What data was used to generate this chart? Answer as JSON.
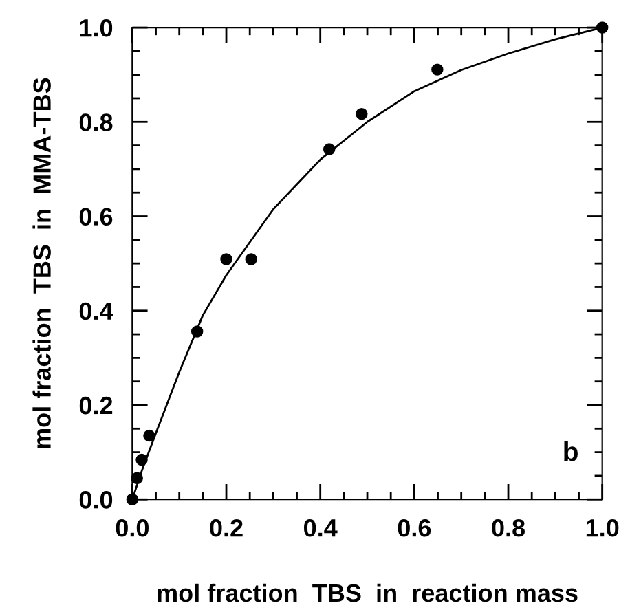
{
  "chart_data": {
    "type": "scatter",
    "xlabel": "mol fraction  TBS  in  reaction mass",
    "ylabel": "mol fraction  TBS  in  MMA-TBS",
    "annotations": [
      "b"
    ],
    "xlim": [
      0,
      1
    ],
    "ylim": [
      0,
      1
    ],
    "xticks": [
      {
        "value": 0,
        "label": "0.0"
      },
      {
        "value": 0.05,
        "label": null
      },
      {
        "value": 0.1,
        "label": null
      },
      {
        "value": 0.15,
        "label": null
      },
      {
        "value": 0.2,
        "label": "0.2"
      },
      {
        "value": 0.25,
        "label": null
      },
      {
        "value": 0.3,
        "label": null
      },
      {
        "value": 0.35,
        "label": null
      },
      {
        "value": 0.4,
        "label": "0.4"
      },
      {
        "value": 0.45,
        "label": null
      },
      {
        "value": 0.5,
        "label": null
      },
      {
        "value": 0.55,
        "label": null
      },
      {
        "value": 0.6,
        "label": "0.6"
      },
      {
        "value": 0.65,
        "label": null
      },
      {
        "value": 0.7,
        "label": null
      },
      {
        "value": 0.75,
        "label": null
      },
      {
        "value": 0.8,
        "label": "0.8"
      },
      {
        "value": 0.85,
        "label": null
      },
      {
        "value": 0.9,
        "label": null
      },
      {
        "value": 0.95,
        "label": null
      },
      {
        "value": 1,
        "label": "1.0"
      }
    ],
    "yticks": [
      {
        "value": 0,
        "label": "0.0"
      },
      {
        "value": 0.05,
        "label": null
      },
      {
        "value": 0.1,
        "label": null
      },
      {
        "value": 0.15,
        "label": null
      },
      {
        "value": 0.2,
        "label": "0.2"
      },
      {
        "value": 0.25,
        "label": null
      },
      {
        "value": 0.3,
        "label": null
      },
      {
        "value": 0.35,
        "label": null
      },
      {
        "value": 0.4,
        "label": "0.4"
      },
      {
        "value": 0.45,
        "label": null
      },
      {
        "value": 0.5,
        "label": null
      },
      {
        "value": 0.55,
        "label": null
      },
      {
        "value": 0.6,
        "label": "0.6"
      },
      {
        "value": 0.65,
        "label": null
      },
      {
        "value": 0.7,
        "label": null
      },
      {
        "value": 0.75,
        "label": null
      },
      {
        "value": 0.8,
        "label": "0.8"
      },
      {
        "value": 0.85,
        "label": null
      },
      {
        "value": 0.9,
        "label": null
      },
      {
        "value": 0.95,
        "label": null
      },
      {
        "value": 1,
        "label": "1.0"
      }
    ],
    "grid": false,
    "legend": false,
    "series": [
      {
        "color": "#000000",
        "marker": "circle",
        "x": [
          0,
          0.01,
          0.02,
          0.036,
          0.138,
          0.2,
          0.253,
          0.419,
          0.488,
          0.649,
          1.0
        ],
        "values": [
          0,
          0.045,
          0.084,
          0.135,
          0.356,
          0.509,
          0.509,
          0.742,
          0.817,
          0.911,
          1.0
        ]
      },
      {
        "type": "line",
        "color": "#000000",
        "marker": "none",
        "line_style": "solid",
        "x": [
          0,
          0.02,
          0.05,
          0.1,
          0.15,
          0.2,
          0.3,
          0.4,
          0.5,
          0.6,
          0.7,
          0.8,
          0.9,
          1.0
        ],
        "values": [
          0,
          0.06,
          0.14,
          0.27,
          0.39,
          0.475,
          0.615,
          0.72,
          0.8,
          0.865,
          0.91,
          0.945,
          0.975,
          1.0
        ]
      }
    ]
  }
}
